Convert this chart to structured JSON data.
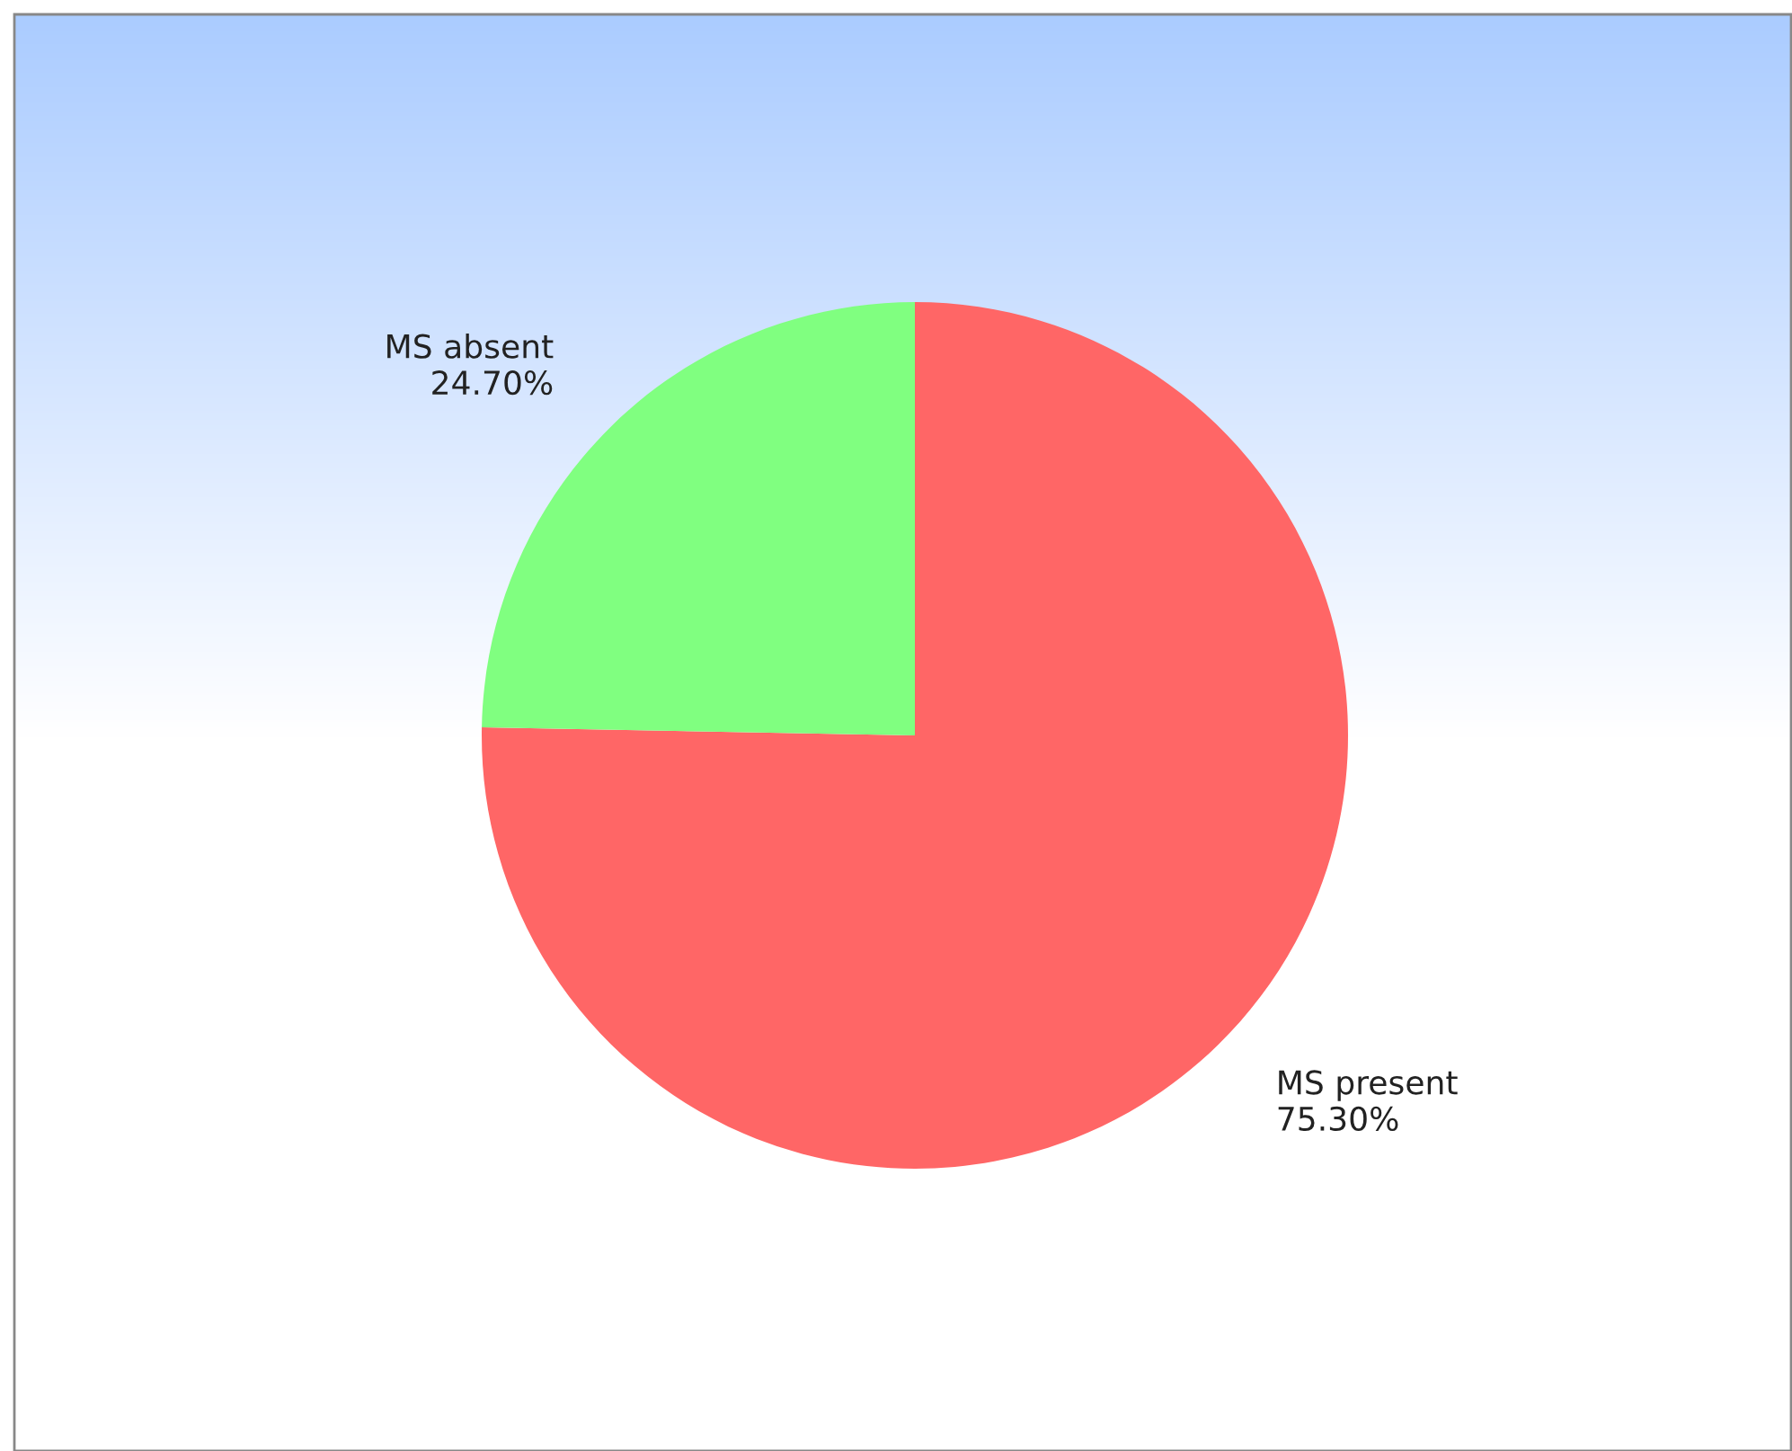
{
  "chart_data": {
    "type": "pie",
    "categories": [
      "MS present",
      "MS absent"
    ],
    "values": [
      75.3,
      24.7
    ],
    "colors": [
      "#ff6666",
      "#80ff80"
    ],
    "value_labels": [
      "75.30%",
      "24.70%"
    ],
    "legend": false
  }
}
